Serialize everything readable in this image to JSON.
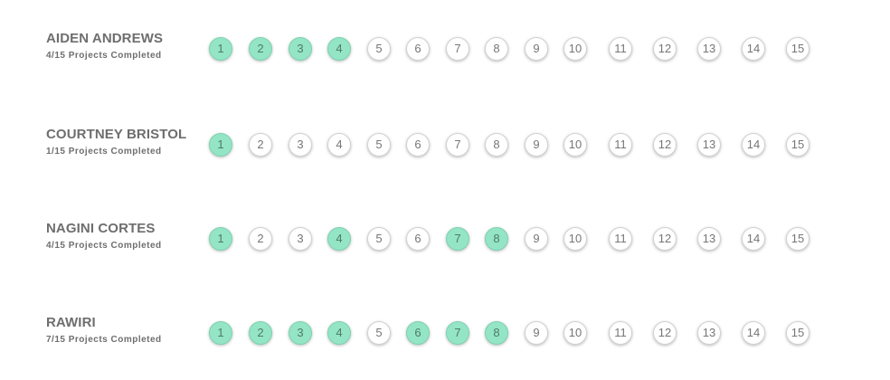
{
  "colors": {
    "completed_fill": "#94e5c5",
    "pending_fill": "#ffffff",
    "text": "#6e6e6e"
  },
  "students": [
    {
      "name": "AIDEN ANDREWS",
      "progress_text": "4/15 Projects Completed",
      "projects": [
        {
          "label": "1",
          "completed": true
        },
        {
          "label": "2",
          "completed": true
        },
        {
          "label": "3",
          "completed": true
        },
        {
          "label": "4",
          "completed": true
        },
        {
          "label": "5",
          "completed": false
        },
        {
          "label": "6",
          "completed": false
        },
        {
          "label": "7",
          "completed": false
        },
        {
          "label": "8",
          "completed": false
        },
        {
          "label": "9",
          "completed": false
        },
        {
          "label": "10",
          "completed": false
        },
        {
          "label": "11",
          "completed": false
        },
        {
          "label": "12",
          "completed": false
        },
        {
          "label": "13",
          "completed": false
        },
        {
          "label": "14",
          "completed": false
        },
        {
          "label": "15",
          "completed": false
        }
      ]
    },
    {
      "name": "COURTNEY BRISTOL",
      "progress_text": "1/15 Projects Completed",
      "projects": [
        {
          "label": "1",
          "completed": true
        },
        {
          "label": "2",
          "completed": false
        },
        {
          "label": "3",
          "completed": false
        },
        {
          "label": "4",
          "completed": false
        },
        {
          "label": "5",
          "completed": false
        },
        {
          "label": "6",
          "completed": false
        },
        {
          "label": "7",
          "completed": false
        },
        {
          "label": "8",
          "completed": false
        },
        {
          "label": "9",
          "completed": false
        },
        {
          "label": "10",
          "completed": false
        },
        {
          "label": "11",
          "completed": false
        },
        {
          "label": "12",
          "completed": false
        },
        {
          "label": "13",
          "completed": false
        },
        {
          "label": "14",
          "completed": false
        },
        {
          "label": "15",
          "completed": false
        }
      ]
    },
    {
      "name": "NAGINI CORTES",
      "progress_text": "4/15 Projects Completed",
      "projects": [
        {
          "label": "1",
          "completed": true
        },
        {
          "label": "2",
          "completed": false
        },
        {
          "label": "3",
          "completed": false
        },
        {
          "label": "4",
          "completed": true
        },
        {
          "label": "5",
          "completed": false
        },
        {
          "label": "6",
          "completed": false
        },
        {
          "label": "7",
          "completed": true
        },
        {
          "label": "8",
          "completed": true
        },
        {
          "label": "9",
          "completed": false
        },
        {
          "label": "10",
          "completed": false
        },
        {
          "label": "11",
          "completed": false
        },
        {
          "label": "12",
          "completed": false
        },
        {
          "label": "13",
          "completed": false
        },
        {
          "label": "14",
          "completed": false
        },
        {
          "label": "15",
          "completed": false
        }
      ]
    },
    {
      "name": "RAWIRI",
      "progress_text": "7/15 Projects Completed",
      "projects": [
        {
          "label": "1",
          "completed": true
        },
        {
          "label": "2",
          "completed": true
        },
        {
          "label": "3",
          "completed": true
        },
        {
          "label": "4",
          "completed": true
        },
        {
          "label": "5",
          "completed": false
        },
        {
          "label": "6",
          "completed": true
        },
        {
          "label": "7",
          "completed": true
        },
        {
          "label": "8",
          "completed": true
        },
        {
          "label": "9",
          "completed": false
        },
        {
          "label": "10",
          "completed": false
        },
        {
          "label": "11",
          "completed": false
        },
        {
          "label": "12",
          "completed": false
        },
        {
          "label": "13",
          "completed": false
        },
        {
          "label": "14",
          "completed": false
        },
        {
          "label": "15",
          "completed": false
        }
      ]
    }
  ]
}
